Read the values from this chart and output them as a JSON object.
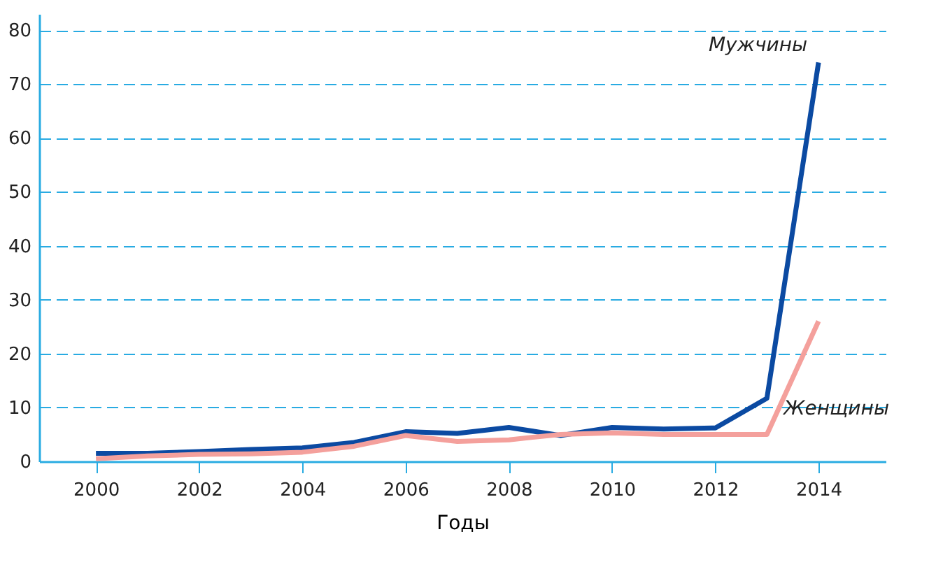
{
  "chart_data": {
    "type": "line",
    "xlabel": "Годы",
    "x": [
      2000,
      2001,
      2002,
      2003,
      2004,
      2005,
      2006,
      2007,
      2008,
      2009,
      2010,
      2011,
      2012,
      2013,
      2014
    ],
    "series": [
      {
        "name": "Мужчины",
        "color": "#0b4aa2",
        "values": [
          1.5,
          1.5,
          1.8,
          2.2,
          2.5,
          3.5,
          5.5,
          5.2,
          6.3,
          4.8,
          6.3,
          6.0,
          6.2,
          11.7,
          74
        ]
      },
      {
        "name": "Женщины",
        "color": "#f4a09c",
        "values": [
          0.5,
          1.0,
          1.3,
          1.4,
          1.7,
          2.8,
          4.8,
          3.7,
          4.0,
          5.0,
          5.3,
          5.0,
          5.0,
          5.0,
          26
        ]
      }
    ],
    "xlim": [
      1998.9,
      2015.3
    ],
    "xticks": [
      2000,
      2002,
      2004,
      2006,
      2008,
      2010,
      2012,
      2014
    ],
    "ylim": [
      0,
      83
    ],
    "yticks": [
      0,
      10,
      20,
      30,
      40,
      50,
      60,
      70,
      80
    ],
    "grid": "y",
    "legend": false,
    "marker": "none",
    "line_style": "solid"
  }
}
